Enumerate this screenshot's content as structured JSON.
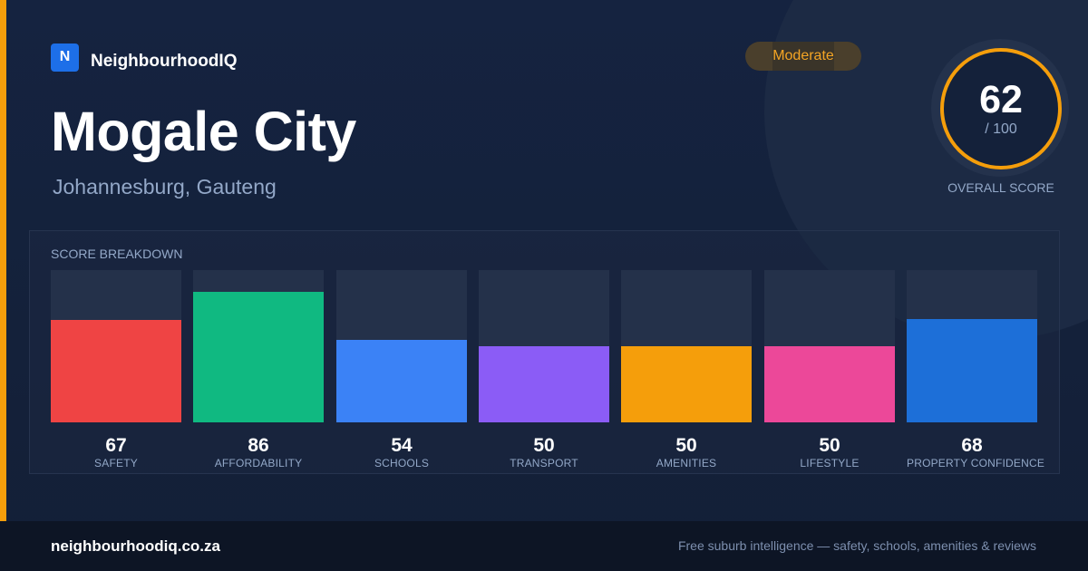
{
  "brand": {
    "logo_letter": "N",
    "name": "NeighbourhoodIQ"
  },
  "suburb": {
    "name": "Mogale City",
    "location": "Johannesburg, Gauteng"
  },
  "rating": {
    "label": "Moderate"
  },
  "overall": {
    "score": "62",
    "max": "/ 100",
    "caption": "OVERALL SCORE"
  },
  "breakdown": {
    "title": "SCORE BREAKDOWN"
  },
  "chart_data": {
    "type": "bar",
    "categories": [
      "SAFETY",
      "AFFORDABILITY",
      "SCHOOLS",
      "TRANSPORT",
      "AMENITIES",
      "LIFESTYLE",
      "PROPERTY CONFIDENCE"
    ],
    "values": [
      67,
      86,
      54,
      50,
      50,
      50,
      68
    ],
    "colors": [
      "#ef4444",
      "#10b981",
      "#3b82f6",
      "#8b5cf6",
      "#f59e0b",
      "#ec4899",
      "#1d6fd8"
    ],
    "ylim": [
      0,
      100
    ]
  },
  "footer": {
    "domain": "neighbourhoodiq.co.za",
    "tagline": "Free suburb intelligence — safety, schools, amenities & reviews"
  },
  "colors": {
    "accent": "#f59e0b",
    "brand": "#1d6fe8",
    "background": "#14213a"
  }
}
